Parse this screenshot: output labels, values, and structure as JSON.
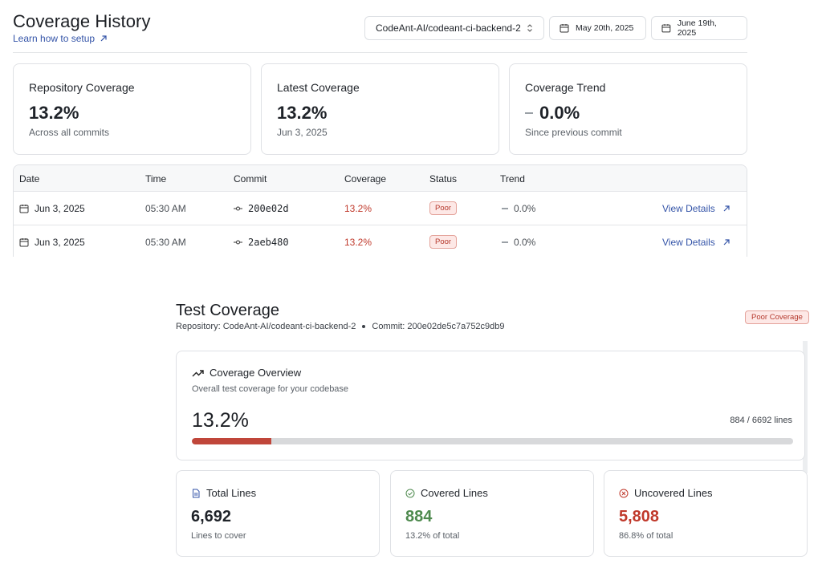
{
  "history": {
    "title": "Coverage History",
    "setup_link": "Learn how to setup",
    "repo_select": "CodeAnt-AI/codeant-ci-backend-2",
    "date_from": "May 20th, 2025",
    "date_to": "June 19th, 2025",
    "cards": [
      {
        "label": "Repository Coverage",
        "value": "13.2%",
        "sub": "Across all commits"
      },
      {
        "label": "Latest Coverage",
        "value": "13.2%",
        "sub": "Jun 3, 2025"
      },
      {
        "label": "Coverage Trend",
        "value": "0.0%",
        "sub": "Since previous commit"
      }
    ],
    "table": {
      "headers": [
        "Date",
        "Time",
        "Commit",
        "Coverage",
        "Status",
        "Trend"
      ],
      "rows": [
        {
          "date": "Jun 3, 2025",
          "time": "05:30 AM",
          "commit": "200e02d",
          "coverage": "13.2%",
          "status": "Poor",
          "trend": "0.0%",
          "action": "View Details"
        },
        {
          "date": "Jun 3, 2025",
          "time": "05:30 AM",
          "commit": "2aeb480",
          "coverage": "13.2%",
          "status": "Poor",
          "trend": "0.0%",
          "action": "View Details"
        }
      ]
    }
  },
  "test_coverage": {
    "title": "Test Coverage",
    "repository_label": "Repository: CodeAnt-AI/codeant-ci-backend-2",
    "commit_label": "Commit: 200e02de5c7a752c9db9",
    "badge": "Poor Coverage",
    "overview": {
      "heading": "Coverage Overview",
      "description": "Overall test coverage for your codebase",
      "percent": "13.2%",
      "percent_value": 13.2,
      "lines": "884 / 6692 lines"
    },
    "cards": [
      {
        "label": "Total Lines",
        "value": "6,692",
        "sub": "Lines to cover"
      },
      {
        "label": "Covered Lines",
        "value": "884",
        "sub": "13.2% of total"
      },
      {
        "label": "Uncovered Lines",
        "value": "5,808",
        "sub": "86.8% of total"
      }
    ]
  },
  "colors": {
    "accent_link": "#3454a8",
    "poor_red": "#c0392b",
    "good_green": "#4e8a4e",
    "progress_fill": "#c0463a"
  }
}
